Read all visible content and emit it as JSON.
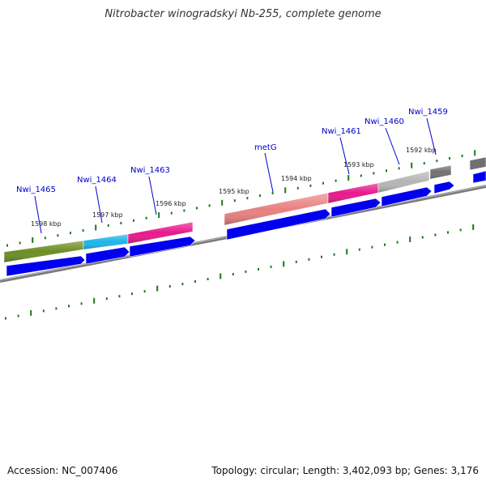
{
  "title": "Nitrobacter winogradskyi Nb-255, complete genome",
  "footer": {
    "accession": "Accession: NC_007406",
    "summary": "Topology: circular; Length: 3,402,093 bp; Genes: 3,176"
  },
  "colors": {
    "forward_track": "#0000ee",
    "backbone": "#808080",
    "ticks": "#1a7a1a",
    "gene_label": "#0000cc"
  },
  "scale_labels": [
    "1598 kbp",
    "1597 kbp",
    "1596 kbp",
    "1595 kbp",
    "1594 kbp",
    "1593 kbp",
    "1592 kbp"
  ],
  "genes": [
    {
      "name": "Nwi_1465",
      "color": "#6b8e23"
    },
    {
      "name": "Nwi_1464",
      "color": "#1cb5e8"
    },
    {
      "name": "Nwi_1463",
      "color": "#e8188c"
    },
    {
      "name": "metG",
      "color": "#e98080"
    },
    {
      "name": "Nwi_1461",
      "color": "#e8188c"
    },
    {
      "name": "Nwi_1460",
      "color": "#b5b5b5"
    },
    {
      "name": "Nwi_1459",
      "color": "#707070"
    }
  ]
}
